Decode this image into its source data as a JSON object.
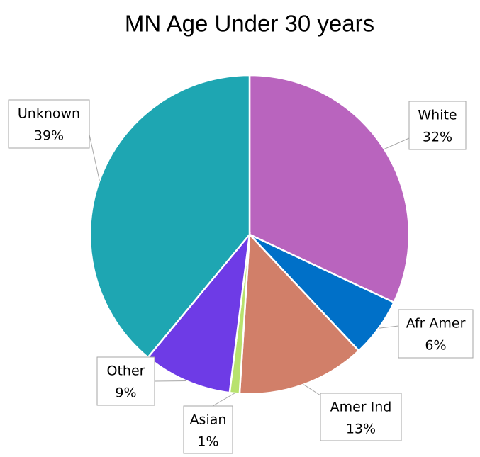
{
  "chart_data": {
    "type": "pie",
    "title": "MN Age Under 30 years",
    "categories": [
      "White",
      "Afr Amer",
      "Amer Ind",
      "Asian",
      "Other",
      "Unknown"
    ],
    "values": [
      32,
      6,
      13,
      1,
      9,
      39
    ],
    "value_labels": [
      "32%",
      "6%",
      "13%",
      "1%",
      "9%",
      "39%"
    ],
    "colors": [
      "#b964be",
      "#0070c8",
      "#d17f69",
      "#b8e26e",
      "#6e3be6",
      "#1ea6b2"
    ]
  }
}
